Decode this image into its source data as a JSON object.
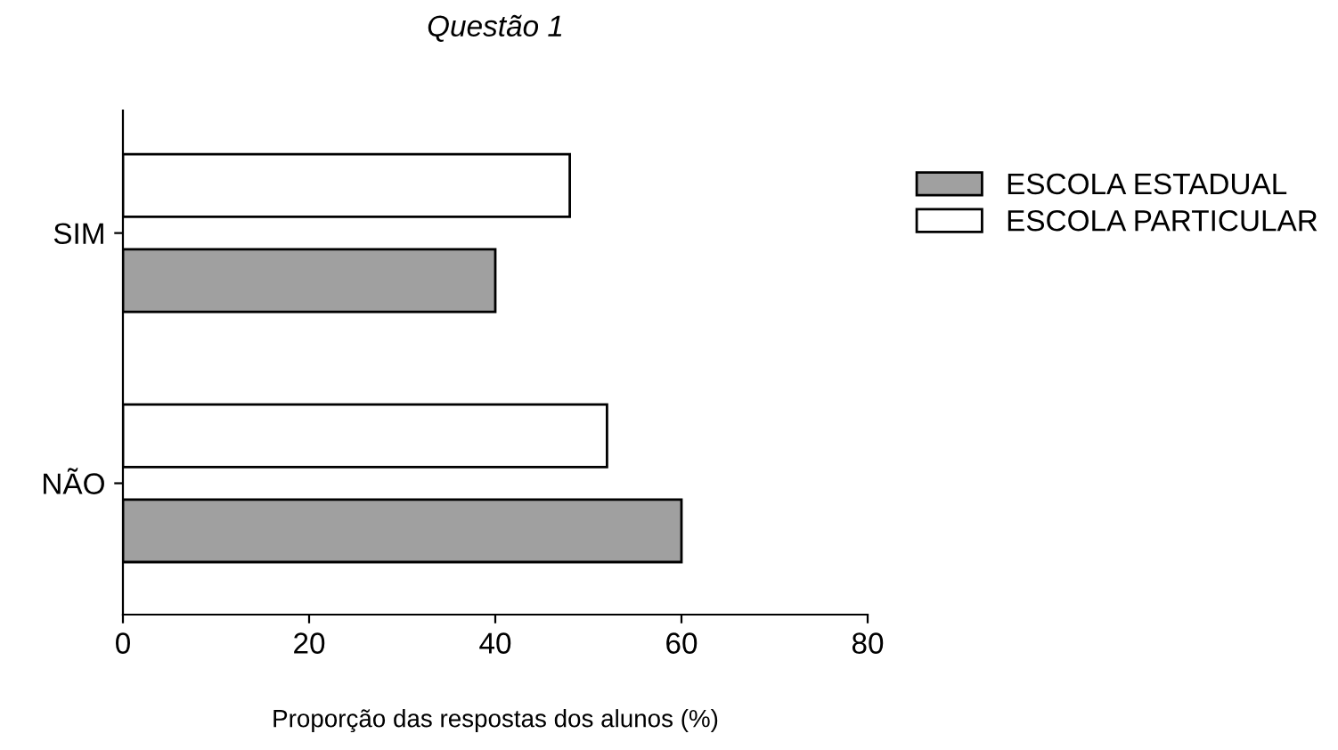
{
  "chart_data": {
    "type": "bar",
    "orientation": "horizontal",
    "title": "Questão 1",
    "xlabel": "Proporção das respostas dos alunos (%)",
    "categories": [
      "SIM",
      "NÃO"
    ],
    "series": [
      {
        "name": "ESCOLA ESTADUAL",
        "color": "#a0a0a0",
        "values": [
          40,
          60
        ]
      },
      {
        "name": "ESCOLA PARTICULAR",
        "color": "#ffffff",
        "values": [
          48,
          52
        ]
      }
    ],
    "xlim": [
      0,
      80
    ],
    "xticks": [
      0,
      20,
      40,
      60,
      80
    ],
    "grid": false,
    "legend": "top right"
  }
}
